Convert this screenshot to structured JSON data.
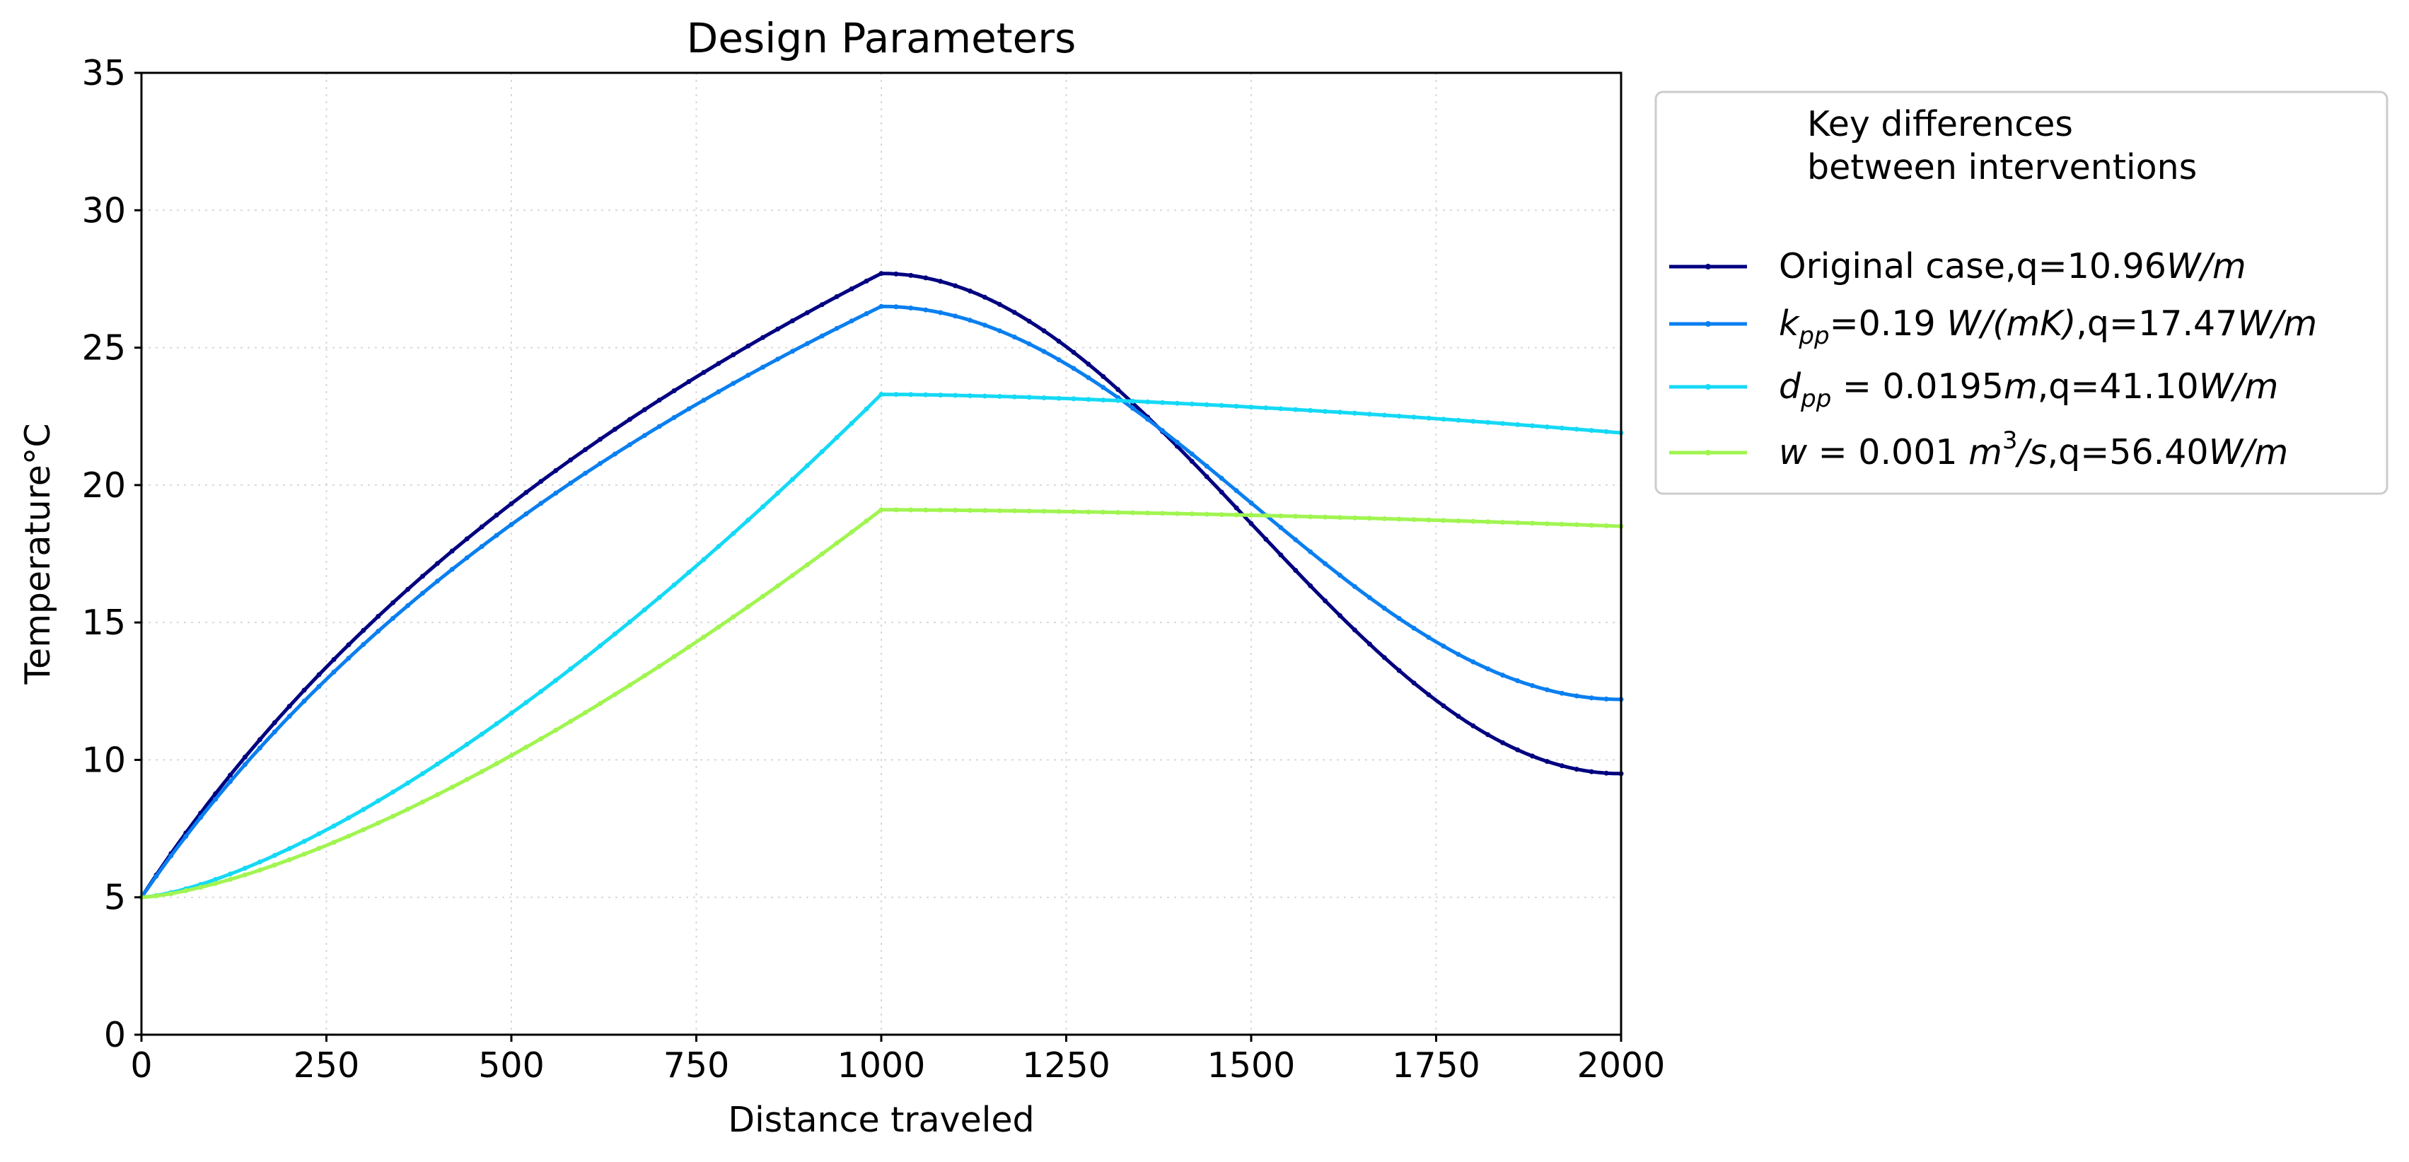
{
  "chart_data": {
    "type": "line",
    "title": "Design Parameters",
    "xlabel": "Distance traveled",
    "ylabel": "Temperature°C",
    "xlim": [
      0,
      2000
    ],
    "ylim": [
      0,
      35
    ],
    "x_ticks": [
      0,
      250,
      500,
      750,
      1000,
      1250,
      1500,
      1750,
      2000
    ],
    "y_ticks": [
      0,
      5,
      10,
      15,
      20,
      25,
      30,
      35
    ],
    "x_tick_labels": [
      "0",
      "250",
      "500",
      "750",
      "1000",
      "1250",
      "1500",
      "1750",
      "2000"
    ],
    "y_tick_labels": [
      "0",
      "5",
      "10",
      "15",
      "20",
      "25",
      "30",
      "35"
    ],
    "grid": true,
    "legend": {
      "placement": "outside-right",
      "title_line1": "Key differences",
      "title_line2": "between interventions"
    },
    "series": [
      {
        "name": "Original case,q=10.96W/m",
        "color": "#000080",
        "shape": "sine-peak",
        "start": 5.0,
        "peak": 27.7,
        "end": 9.5
      },
      {
        "name": "k_pp=0.19 W/(mK),q=17.47W/m",
        "color": "#0a7ff0",
        "shape": "sine-peak",
        "start": 5.0,
        "peak": 26.5,
        "end": 12.2
      },
      {
        "name": "d_pp = 0.0195m,q=41.10W/m",
        "color": "#14d9f5",
        "shape": "rise-plateau",
        "start": 5.0,
        "peak": 23.3,
        "end": 21.9
      },
      {
        "name": "w = 0.001 m^3/s,q=56.40W/m",
        "color": "#a0f550",
        "shape": "rise-plateau",
        "start": 5.0,
        "peak": 19.1,
        "end": 18.5
      }
    ],
    "legend_entries": [
      {
        "prefix": "Original case,q=10.96",
        "unit": "W/m"
      },
      {
        "var": "k",
        "sub": "pp",
        "mid": "=0.19 ",
        "unit1": "W/(mK)",
        "mid2": ",q=17.47",
        "unit2": "W/m"
      },
      {
        "var": "d",
        "sub": "pp",
        "mid": " = 0.0195",
        "unit1": "m",
        "mid2": ",q=41.10",
        "unit2": "W/m"
      },
      {
        "var": "w",
        "mid": " = 0.001 ",
        "unit1": "m",
        "sup": "3",
        "unit1b": "/s",
        "mid2": ",q=56.40",
        "unit2": "W/m"
      }
    ]
  }
}
